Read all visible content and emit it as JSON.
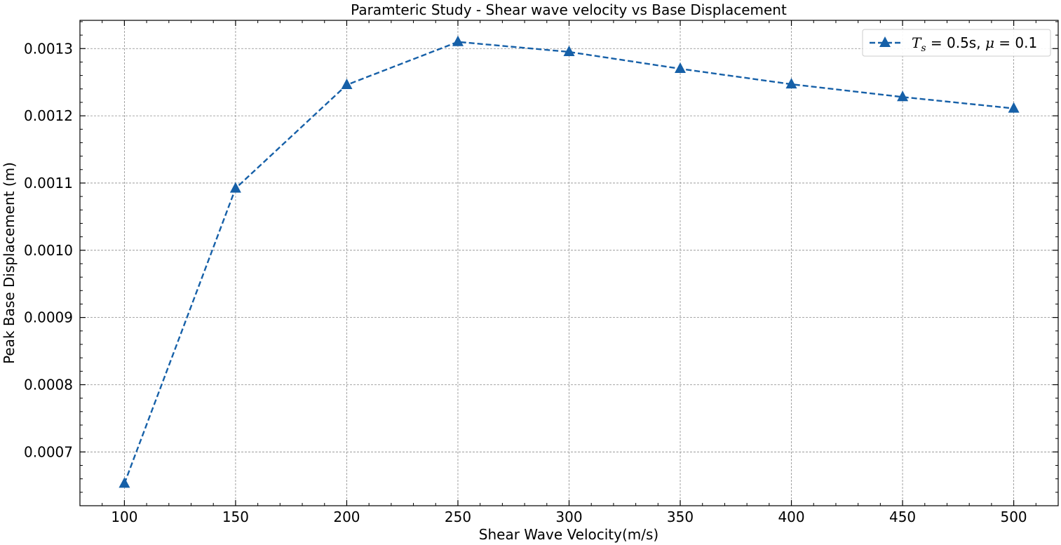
{
  "chart_data": {
    "type": "line",
    "title": "Paramteric Study - Shear wave velocity vs Base Displacement",
    "xlabel": "Shear Wave Velocity(m/s)",
    "ylabel": "Peak Base Displacement (m)",
    "x": [
      100,
      150,
      200,
      250,
      300,
      350,
      400,
      450,
      500
    ],
    "xlim": [
      80,
      520
    ],
    "ylim": [
      0.00062,
      0.001342
    ],
    "xticks": [
      100,
      150,
      200,
      250,
      300,
      350,
      400,
      450,
      500
    ],
    "xtick_labels": [
      "100",
      "150",
      "200",
      "250",
      "300",
      "350",
      "400",
      "450",
      "500"
    ],
    "yticks": [
      0.0007,
      0.0008,
      0.0009,
      0.001,
      0.0011,
      0.0012,
      0.0013
    ],
    "ytick_labels": [
      "0.0007",
      "0.0008",
      "0.0009",
      "0.0010",
      "0.0011",
      "0.0012",
      "0.0013"
    ],
    "grid": true,
    "legend_position": "top-right",
    "series": [
      {
        "name": "T_s = 0.5s, μ = 0.1",
        "legend": {
          "sym1": "T",
          "sub": "s",
          "mid": " = 0.5s, ",
          "sym2": "μ",
          "tail": " = 0.1"
        },
        "color": "#1660a8",
        "line_style": "dashed",
        "marker": "triangle-up",
        "values": [
          0.000653,
          0.001092,
          0.001246,
          0.00131,
          0.001295,
          0.00127,
          0.001247,
          0.001228,
          0.001211
        ]
      }
    ]
  }
}
